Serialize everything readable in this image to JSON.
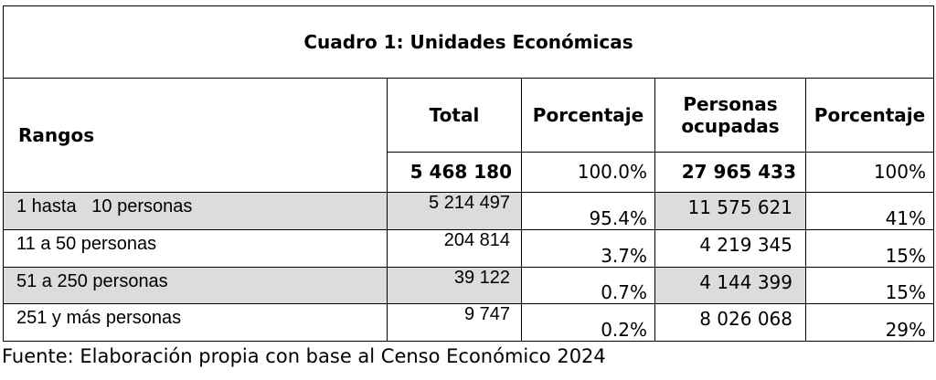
{
  "table": {
    "title": "Cuadro 1: Unidades Económicas",
    "headers": {
      "rangos": "Rangos",
      "total": "Total",
      "porcentaje1": "Porcentaje",
      "personas_line1": "Personas",
      "personas_line2": "ocupadas",
      "porcentaje2": "Porcentaje"
    },
    "totals": {
      "total": "5 468 180",
      "porcentaje1": "100.0%",
      "personas": "27 965 433",
      "porcentaje2": "100%"
    },
    "rows": [
      {
        "rango": "1 hasta   10 personas",
        "total": "5 214 497",
        "pct1": "95.4%",
        "personas": "11 575 621",
        "pct2": "41%",
        "shaded": true
      },
      {
        "rango": "11 a 50 personas",
        "total": "204 814",
        "pct1": "3.7%",
        "personas": "4 219 345",
        "pct2": "15%",
        "shaded": false
      },
      {
        "rango": "51 a 250 personas",
        "total": "39 122",
        "pct1": "0.7%",
        "personas": "4 144 399",
        "pct2": "15%",
        "shaded": true
      },
      {
        "rango": "251 y más personas",
        "total": "9 747",
        "pct1": "0.2%",
        "personas": "8 026 068",
        "pct2": "29%",
        "shaded": false
      }
    ]
  },
  "footer": {
    "fuente": "Fuente: Elaboración propia con base al Censo Económico 2024"
  },
  "colors": {
    "shade": "#dcdcdc",
    "border": "#000000"
  }
}
